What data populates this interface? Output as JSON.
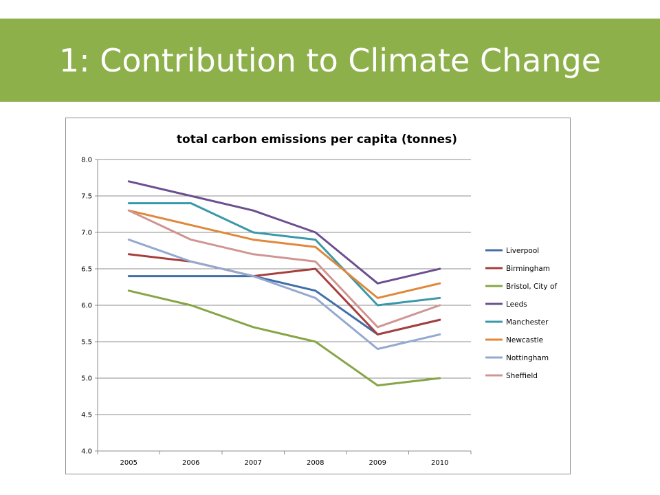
{
  "slide": {
    "title": "1: Contribution to Climate Change"
  },
  "colors": {
    "banner": "#8db04b",
    "banner_text": "#ffffff",
    "gridline": "#8c8c8c"
  },
  "chart_data": {
    "type": "line",
    "title": "total carbon emissions per capita (tonnes)",
    "xlabel": "",
    "ylabel": "",
    "categories": [
      "2005",
      "2006",
      "2007",
      "2008",
      "2009",
      "2010"
    ],
    "ylim": [
      4.0,
      8.0
    ],
    "yticks": [
      "4.0",
      "4.5",
      "5.0",
      "5.5",
      "6.0",
      "6.5",
      "7.0",
      "7.5",
      "8.0"
    ],
    "grid": true,
    "legend_position": "right",
    "series": [
      {
        "name": "Liverpool",
        "color": "#3f6ea8",
        "values": [
          6.4,
          6.4,
          6.4,
          6.2,
          5.6,
          5.8
        ]
      },
      {
        "name": "Birmingham",
        "color": "#a63f3c",
        "values": [
          6.7,
          6.6,
          6.4,
          6.5,
          5.6,
          5.8
        ]
      },
      {
        "name": "Bristol, City of",
        "color": "#87a546",
        "values": [
          6.2,
          6.0,
          5.7,
          5.5,
          4.9,
          5.0
        ]
      },
      {
        "name": "Leeds",
        "color": "#6b4f8f",
        "values": [
          7.7,
          7.5,
          7.3,
          7.0,
          6.3,
          6.5
        ]
      },
      {
        "name": "Manchester",
        "color": "#3998a9",
        "values": [
          7.4,
          7.4,
          7.0,
          6.9,
          6.0,
          6.1
        ]
      },
      {
        "name": "Newcastle",
        "color": "#e0883a",
        "values": [
          7.3,
          7.1,
          6.9,
          6.8,
          6.1,
          6.3
        ]
      },
      {
        "name": "Nottingham",
        "color": "#93a9cf",
        "values": [
          6.9,
          6.6,
          6.4,
          6.1,
          5.4,
          5.6
        ]
      },
      {
        "name": "Sheffield",
        "color": "#d09592",
        "values": [
          7.3,
          6.9,
          6.7,
          6.6,
          5.7,
          6.0
        ]
      }
    ]
  }
}
